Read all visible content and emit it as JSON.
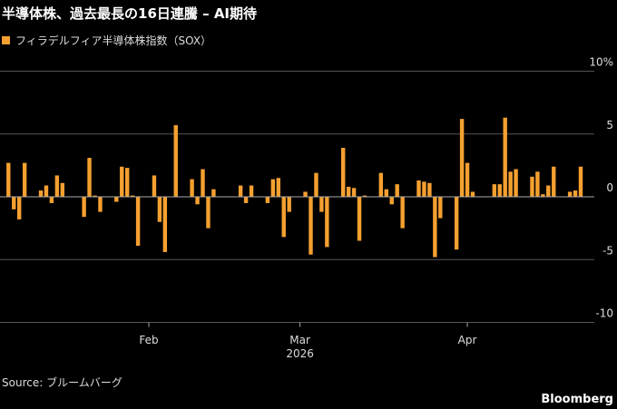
{
  "header": {
    "title": "半導体株、過去最長の16日連騰 – AI期待",
    "legend_label": "フィラデルフィア半導体株指数（SOX）"
  },
  "footer": {
    "source": "Source: ブルームバーグ",
    "brand": "Bloomberg"
  },
  "colors": {
    "bar": "#f5a030",
    "background": "#000000",
    "grid": "#555555",
    "zero_line": "#aaaaaa"
  },
  "chart_data": {
    "type": "bar",
    "title": "半導体株、過去最長の16日連騰 – AI期待",
    "legend": {
      "entries": [
        "フィラデルフィア半導体株指数（SOX）"
      ],
      "placement": "top-left"
    },
    "ylim": [
      -10,
      10
    ],
    "yticks": [
      10,
      5,
      0,
      -5,
      -10
    ],
    "ytick_labels": [
      "10%",
      "5",
      "0",
      "-5",
      "-10"
    ],
    "xticks": [
      {
        "date": "2026-02-01",
        "label": "Feb"
      },
      {
        "date": "2026-03-01",
        "label": "Mar"
      },
      {
        "date": "2026-04-01",
        "label": "Apr"
      }
    ],
    "xyear_label": "2026",
    "xlim": [
      "2026-01-05",
      "2026-04-29"
    ],
    "grid": true,
    "series": [
      {
        "name": "フィラデルフィア半導体株指数（SOX）",
        "points": [
          [
            "2026-01-06",
            2.7
          ],
          [
            "2026-01-07",
            -1.0
          ],
          [
            "2026-01-08",
            -1.8
          ],
          [
            "2026-01-09",
            2.7
          ],
          [
            "2026-01-12",
            0.5
          ],
          [
            "2026-01-13",
            0.9
          ],
          [
            "2026-01-14",
            -0.5
          ],
          [
            "2026-01-15",
            1.7
          ],
          [
            "2026-01-16",
            1.1
          ],
          [
            "2026-01-20",
            -1.6
          ],
          [
            "2026-01-21",
            3.1
          ],
          [
            "2026-01-22",
            0.1
          ],
          [
            "2026-01-23",
            -1.2
          ],
          [
            "2026-01-26",
            -0.4
          ],
          [
            "2026-01-27",
            2.4
          ],
          [
            "2026-01-28",
            2.3
          ],
          [
            "2026-01-29",
            0.1
          ],
          [
            "2026-01-30",
            -3.9
          ],
          [
            "2026-02-02",
            1.7
          ],
          [
            "2026-02-03",
            -2.0
          ],
          [
            "2026-02-04",
            -4.4
          ],
          [
            "2026-02-06",
            5.7
          ],
          [
            "2026-02-09",
            1.4
          ],
          [
            "2026-02-10",
            -0.6
          ],
          [
            "2026-02-11",
            2.2
          ],
          [
            "2026-02-12",
            -2.5
          ],
          [
            "2026-02-13",
            0.6
          ],
          [
            "2026-02-18",
            0.9
          ],
          [
            "2026-02-19",
            -0.5
          ],
          [
            "2026-02-20",
            0.9
          ],
          [
            "2026-02-23",
            -0.5
          ],
          [
            "2026-02-24",
            1.4
          ],
          [
            "2026-02-25",
            1.5
          ],
          [
            "2026-02-26",
            -3.2
          ],
          [
            "2026-02-27",
            -1.2
          ],
          [
            "2026-03-02",
            0.4
          ],
          [
            "2026-03-03",
            -4.6
          ],
          [
            "2026-03-04",
            1.9
          ],
          [
            "2026-03-05",
            -1.2
          ],
          [
            "2026-03-06",
            -4.0
          ],
          [
            "2026-03-09",
            3.9
          ],
          [
            "2026-03-10",
            0.8
          ],
          [
            "2026-03-11",
            0.7
          ],
          [
            "2026-03-12",
            -3.5
          ],
          [
            "2026-03-13",
            0.1
          ],
          [
            "2026-03-16",
            1.9
          ],
          [
            "2026-03-17",
            0.6
          ],
          [
            "2026-03-18",
            -0.6
          ],
          [
            "2026-03-19",
            1.0
          ],
          [
            "2026-03-20",
            -2.5
          ],
          [
            "2026-03-23",
            1.3
          ],
          [
            "2026-03-24",
            1.2
          ],
          [
            "2026-03-25",
            1.1
          ],
          [
            "2026-03-26",
            -4.8
          ],
          [
            "2026-03-27",
            -1.7
          ],
          [
            "2026-03-30",
            -4.2
          ],
          [
            "2026-03-31",
            6.2
          ],
          [
            "2026-04-01",
            2.7
          ],
          [
            "2026-04-02",
            0.4
          ],
          [
            "2026-04-06",
            1.0
          ],
          [
            "2026-04-07",
            1.0
          ],
          [
            "2026-04-08",
            6.3
          ],
          [
            "2026-04-09",
            2.0
          ],
          [
            "2026-04-10",
            2.2
          ],
          [
            "2026-04-13",
            1.6
          ],
          [
            "2026-04-14",
            2.0
          ],
          [
            "2026-04-15",
            0.2
          ],
          [
            "2026-04-16",
            0.9
          ],
          [
            "2026-04-17",
            2.4
          ],
          [
            "2026-04-20",
            0.4
          ],
          [
            "2026-04-21",
            0.5
          ],
          [
            "2026-04-22",
            2.4
          ]
        ]
      }
    ]
  }
}
